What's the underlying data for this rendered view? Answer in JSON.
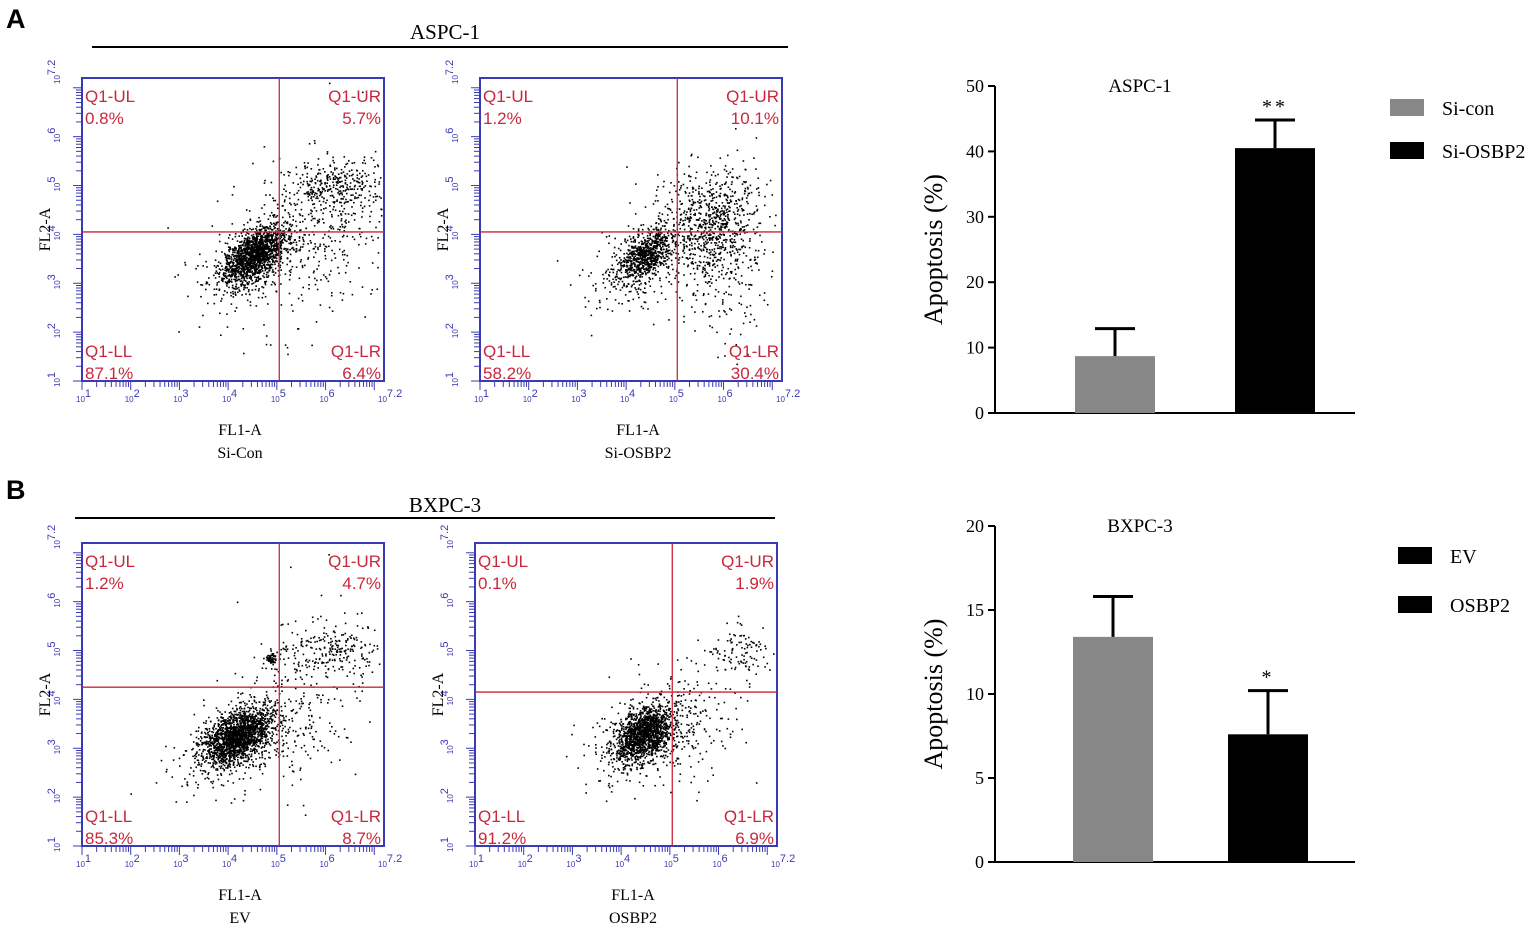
{
  "panels": [
    {
      "letter": "A",
      "cell_line": "ASPC-1",
      "flow_plots": [
        {
          "x_label": "FL1-A",
          "y_label": "FL2-A",
          "condition": "Si-Con",
          "quadrants": {
            "ul_label": "Q1-UL",
            "ul_value": "0.8%",
            "ur_label": "Q1-UR",
            "ur_value": "5.7%",
            "ll_label": "Q1-LL",
            "ll_value": "87.1%",
            "lr_label": "Q1-LR",
            "lr_value": "6.4%"
          }
        },
        {
          "x_label": "FL1-A",
          "y_label": "FL2-A",
          "condition": "Si-OSBP2",
          "quadrants": {
            "ul_label": "Q1-UL",
            "ul_value": "1.2%",
            "ur_label": "Q1-UR",
            "ur_value": "10.1%",
            "ll_label": "Q1-LL",
            "ll_value": "58.2%",
            "lr_label": "Q1-LR",
            "lr_value": "30.4%"
          }
        }
      ]
    },
    {
      "letter": "B",
      "cell_line": "BXPC-3",
      "flow_plots": [
        {
          "x_label": "FL1-A",
          "y_label": "FL2-A",
          "condition": "EV",
          "quadrants": {
            "ul_label": "Q1-UL",
            "ul_value": "1.2%",
            "ur_label": "Q1-UR",
            "ur_value": "4.7%",
            "ll_label": "Q1-LL",
            "ll_value": "85.3%",
            "lr_label": "Q1-LR",
            "lr_value": "8.7%"
          }
        },
        {
          "x_label": "FL1-A",
          "y_label": "FL2-A",
          "condition": "OSBP2",
          "quadrants": {
            "ul_label": "Q1-UL",
            "ul_value": "0.1%",
            "ur_label": "Q1-UR",
            "ur_value": "1.9%",
            "ll_label": "Q1-LL",
            "ll_value": "91.2%",
            "lr_label": "Q1-LR",
            "lr_value": "6.9%"
          }
        }
      ]
    }
  ],
  "flow_axis": {
    "tick_base": "10",
    "x_tick_exponents": [
      "1",
      "2",
      "3",
      "4",
      "5",
      "6",
      "7.2"
    ],
    "y_tick_exponents": [
      "1",
      "2",
      "3",
      "4",
      "5",
      "6",
      "7.2"
    ],
    "range_log": [
      1,
      7.2
    ],
    "gates": [
      {
        "x_log": 5.05,
        "y_log": 4.05
      },
      {
        "x_log": 5.05,
        "y_log": 4.05
      },
      {
        "x_log": 5.05,
        "y_log": 4.25
      },
      {
        "x_log": 5.05,
        "y_log": 4.15
      }
    ],
    "colors": {
      "frame": "#3a3ab4",
      "gate": "#c8283c",
      "quadrant_text": "#c8283c",
      "dots": "#000000"
    }
  },
  "chart_data": [
    {
      "type": "bar",
      "title": "ASPC-1",
      "ylabel": "Apoptosis (%)",
      "xlabel": "",
      "categories": [
        "Si-con",
        "Si-OSBP2"
      ],
      "values": [
        8.7,
        40.5
      ],
      "errors": [
        4.2,
        4.3
      ],
      "significance": [
        "",
        "**"
      ],
      "colors": [
        "#878787",
        "#000000"
      ],
      "ylim": [
        0,
        50
      ],
      "yticks": [
        0,
        10,
        20,
        30,
        40,
        50
      ],
      "legend": [
        "Si-con",
        "Si-OSBP2"
      ],
      "legend_position": "right"
    },
    {
      "type": "bar",
      "title": "BXPC-3",
      "ylabel": "Apoptosis (%)",
      "xlabel": "",
      "categories": [
        "EV",
        "OSBP2"
      ],
      "values": [
        13.4,
        7.6
      ],
      "errors": [
        2.4,
        2.6
      ],
      "significance": [
        "",
        "*"
      ],
      "colors": [
        "#878787",
        "#000000"
      ],
      "legend_colors": [
        "#000000",
        "#000000"
      ],
      "ylim": [
        0,
        20
      ],
      "yticks": [
        0,
        5,
        10,
        15,
        20
      ],
      "legend": [
        "EV",
        "OSBP2"
      ],
      "legend_position": "right"
    }
  ]
}
